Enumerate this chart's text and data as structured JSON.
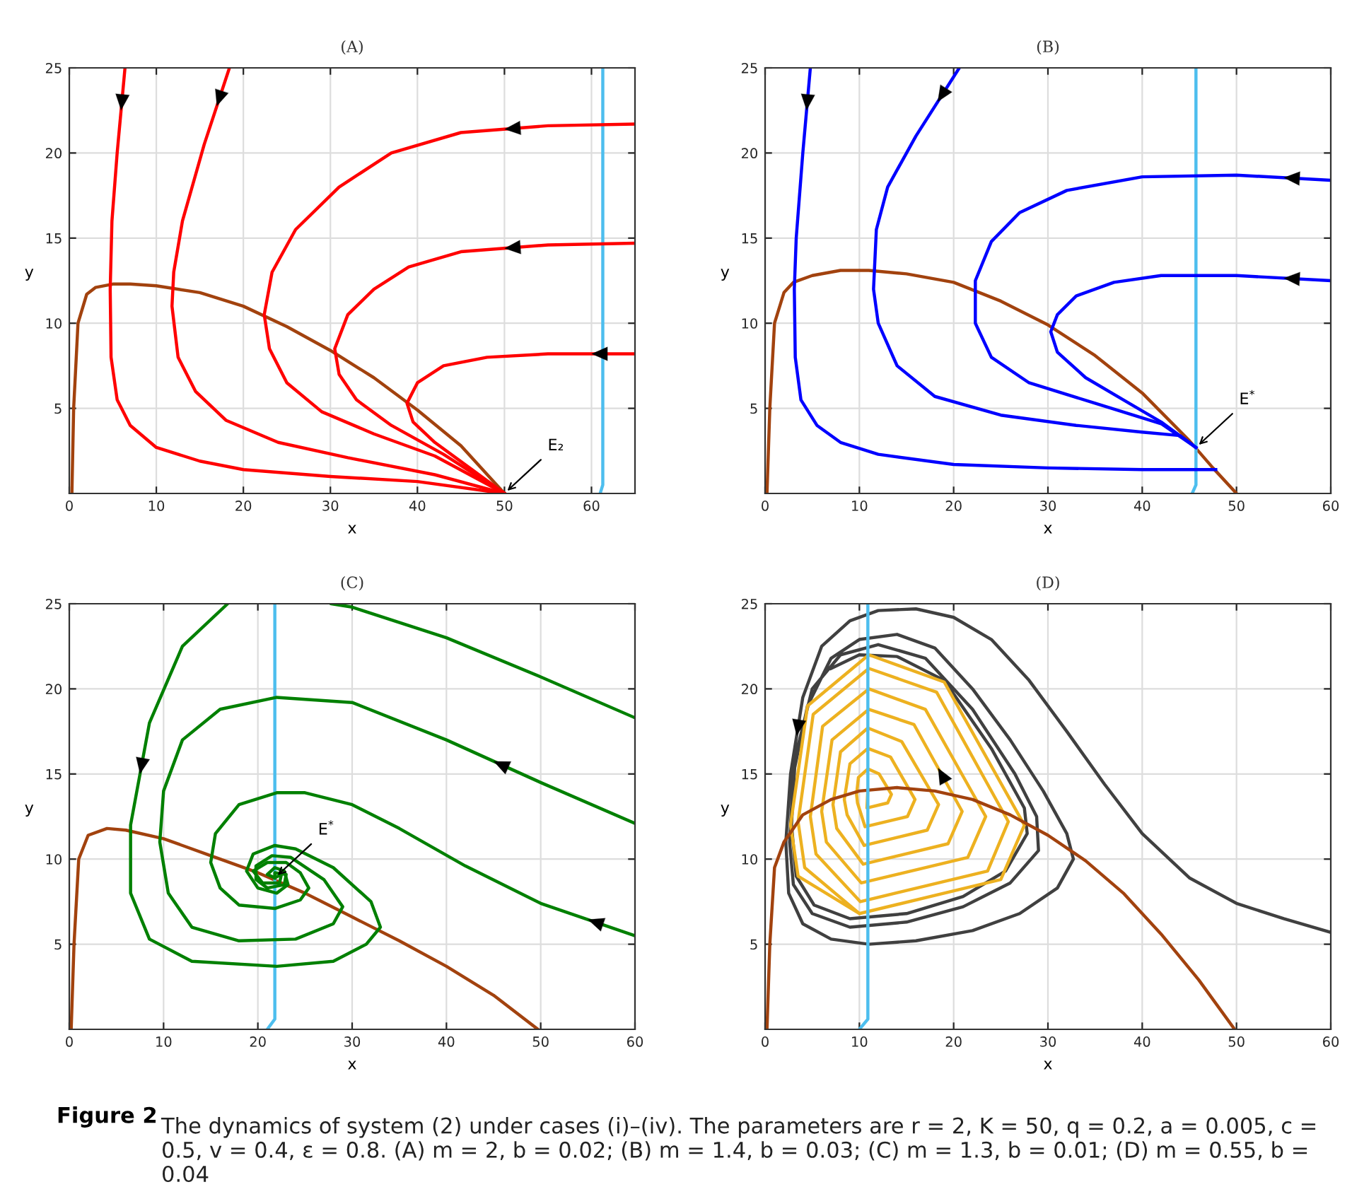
{
  "chart_data": [
    {
      "type": "line",
      "title": "(A)",
      "xlabel": "x",
      "ylabel": "y",
      "xlim": [
        0,
        65
      ],
      "ylim": [
        0,
        25
      ],
      "xticks": [
        0,
        10,
        20,
        30,
        40,
        50,
        60
      ],
      "yticks": [
        5,
        10,
        15,
        20,
        25
      ],
      "grid": true,
      "annotations": [
        {
          "text": "E₂",
          "x": 50,
          "y": 0
        }
      ],
      "series": [
        {
          "color": "#a2420e",
          "x": [
            0.3,
            0.5,
            1,
            2,
            3,
            5,
            7,
            10,
            15,
            20,
            25,
            30,
            35,
            40,
            45,
            50
          ],
          "values": [
            0,
            5,
            10,
            11.7,
            12.1,
            12.3,
            12.3,
            12.2,
            11.8,
            11.0,
            9.8,
            8.4,
            6.8,
            4.9,
            2.8,
            0
          ]
        },
        {
          "color": "#4dbeee",
          "x": [
            61,
            61.3,
            61.3
          ],
          "values": [
            0,
            0.5,
            25
          ]
        },
        {
          "color": "#ff0000",
          "x": [
            6.4,
            5.5,
            4.9,
            4.7,
            4.8,
            5.5,
            7,
            10,
            15,
            20,
            30,
            40,
            50
          ],
          "values": [
            25,
            20,
            16,
            12,
            8,
            5.5,
            4,
            2.7,
            1.9,
            1.4,
            1.0,
            0.7,
            0
          ]
        },
        {
          "color": "#ff0000",
          "x": [
            18.4,
            15.5,
            13,
            12,
            11.8,
            12.5,
            14.5,
            18,
            24,
            32,
            42,
            50
          ],
          "values": [
            25,
            20.5,
            16,
            13,
            11,
            8,
            6,
            4.3,
            3.0,
            2.1,
            1.1,
            0
          ]
        },
        {
          "color": "#ff0000",
          "x": [
            65,
            55,
            45,
            37,
            31,
            26,
            23.3,
            22.4,
            23,
            25,
            29,
            35,
            42,
            50
          ],
          "values": [
            21.7,
            21.6,
            21.2,
            20,
            18,
            15.5,
            13,
            10.5,
            8.5,
            6.5,
            4.8,
            3.5,
            2.2,
            0
          ]
        },
        {
          "color": "#ff0000",
          "x": [
            65,
            55,
            45,
            39,
            35,
            32,
            30.5,
            31,
            33,
            37,
            43,
            50
          ],
          "values": [
            14.7,
            14.6,
            14.2,
            13.3,
            12,
            10.5,
            8.5,
            7,
            5.5,
            4,
            2.3,
            0
          ]
        },
        {
          "color": "#ff0000",
          "x": [
            65,
            55,
            48,
            43,
            40,
            38.8,
            39.5,
            42,
            46,
            50
          ],
          "values": [
            8.2,
            8.2,
            8.0,
            7.5,
            6.5,
            5.3,
            4.2,
            3,
            1.5,
            0
          ]
        }
      ]
    },
    {
      "type": "line",
      "title": "(B)",
      "xlabel": "x",
      "ylabel": "y",
      "xlim": [
        0,
        60
      ],
      "ylim": [
        0,
        25
      ],
      "xticks": [
        0,
        10,
        20,
        30,
        40,
        50,
        60
      ],
      "yticks": [
        5,
        10,
        15,
        20,
        25
      ],
      "grid": true,
      "annotations": [
        {
          "text": "E$^{*}$",
          "x": 45.7,
          "y": 2.7
        }
      ],
      "series": [
        {
          "color": "#a2420e",
          "x": [
            0.2,
            0.5,
            1,
            2,
            3,
            5,
            8,
            11,
            15,
            20,
            25,
            30,
            35,
            40,
            45,
            47.5,
            50
          ],
          "values": [
            0,
            5,
            10,
            11.8,
            12.4,
            12.8,
            13.1,
            13.1,
            12.9,
            12.4,
            11.3,
            9.9,
            8.1,
            5.9,
            3.1,
            1.5,
            0
          ]
        },
        {
          "color": "#4dbeee",
          "x": [
            45.3,
            45.7,
            45.7
          ],
          "values": [
            0,
            0.5,
            25
          ]
        },
        {
          "color": "#0000ff",
          "x": [
            4.8,
            4,
            3.3,
            3.1,
            3.2,
            3.8,
            5.5,
            8,
            12,
            20,
            30,
            40,
            47.8
          ],
          "values": [
            25,
            20,
            15,
            12,
            8,
            5.5,
            4,
            3,
            2.3,
            1.7,
            1.5,
            1.4,
            1.4
          ]
        },
        {
          "color": "#0000ff",
          "x": [
            20.6,
            16,
            13,
            11.8,
            11.5,
            12,
            14,
            18,
            25,
            33,
            40,
            44,
            45.7
          ],
          "values": [
            25,
            21,
            18,
            15.5,
            12,
            10,
            7.5,
            5.7,
            4.6,
            4,
            3.6,
            3.4,
            2.7
          ]
        },
        {
          "color": "#0000ff",
          "x": [
            60,
            50,
            40,
            32,
            27,
            24,
            22.3,
            22.3,
            24,
            28,
            35,
            42,
            45.7
          ],
          "values": [
            18.4,
            18.7,
            18.6,
            17.8,
            16.5,
            14.8,
            12.5,
            10,
            8,
            6.5,
            5.3,
            4.1,
            2.7
          ]
        },
        {
          "color": "#0000ff",
          "x": [
            60,
            50,
            42,
            37,
            33,
            31,
            30.3,
            31,
            34,
            38,
            42,
            45.7
          ],
          "values": [
            12.5,
            12.8,
            12.8,
            12.4,
            11.6,
            10.5,
            9.5,
            8.3,
            6.8,
            5.5,
            4.2,
            2.7
          ]
        }
      ]
    },
    {
      "type": "line",
      "title": "(C)",
      "xlabel": "x",
      "ylabel": "y",
      "xlim": [
        0,
        60
      ],
      "ylim": [
        0,
        25
      ],
      "xticks": [
        0,
        10,
        20,
        30,
        40,
        50,
        60
      ],
      "yticks": [
        5,
        10,
        15,
        20,
        25
      ],
      "grid": true,
      "annotations": [
        {
          "text": "E$^{*}$",
          "x": 21.8,
          "y": 8.9
        }
      ],
      "series": [
        {
          "color": "#a2420e",
          "x": [
            0.2,
            0.5,
            1,
            2,
            4,
            6,
            10,
            15,
            20,
            25,
            30,
            35,
            40,
            45,
            49.7
          ],
          "values": [
            0,
            5,
            10,
            11.4,
            11.8,
            11.7,
            11.2,
            10.2,
            9.2,
            8.0,
            6.6,
            5.2,
            3.7,
            2.0,
            0
          ]
        },
        {
          "color": "#4dbeee",
          "x": [
            21,
            21.8,
            21.8
          ],
          "values": [
            0,
            0.6,
            25
          ]
        },
        {
          "color": "#008000",
          "x": [
            60,
            50,
            40,
            30,
            27.8,
            22,
            16.8,
            12,
            8.5,
            6.5,
            6.5,
            8.5,
            13,
            22,
            28,
            31.5,
            33,
            32,
            28,
            24,
            21.8,
            19.5,
            18.8,
            20,
            22,
            23.2,
            22.8,
            21.8,
            21,
            21.8
          ],
          "values": [
            18.3,
            20.7,
            23,
            24.8,
            25,
            null,
            25,
            22.5,
            18,
            12,
            8,
            5.3,
            4,
            3.7,
            4,
            5,
            6,
            7.5,
            9.5,
            10.6,
            10.8,
            10.3,
            9.3,
            8.3,
            8.0,
            8.5,
            9.3,
            9.5,
            9.1,
            8.9
          ]
        },
        {
          "color": "#008000",
          "x": [
            60,
            50,
            40,
            30,
            22,
            16,
            12,
            10,
            9.6,
            10.5,
            13,
            18,
            24,
            28,
            29,
            27,
            23.5,
            21.5,
            19.8,
            19.8,
            21,
            22.8,
            23,
            21.8,
            21.8
          ],
          "values": [
            12.1,
            14.5,
            17,
            19.2,
            19.5,
            18.8,
            17,
            14,
            11,
            8,
            6,
            5.2,
            5.3,
            6.2,
            7.2,
            8.8,
            10.1,
            10.2,
            9.6,
            8.8,
            8.3,
            8.5,
            9.1,
            9.2,
            8.9
          ]
        },
        {
          "color": "#008000",
          "x": [
            60,
            50,
            42,
            35,
            30,
            25,
            22,
            18,
            15.5,
            15,
            16,
            18,
            21.8,
            24.5,
            25.4,
            24.5,
            23,
            21,
            19.5,
            20.5,
            22.3,
            22.5,
            21.8
          ],
          "values": [
            5.5,
            7.4,
            9.6,
            11.8,
            13.2,
            13.9,
            13.9,
            13.2,
            11.5,
            9.8,
            8.3,
            7.3,
            7.1,
            7.6,
            8.3,
            9.2,
            9.8,
            9.8,
            9.3,
            8.6,
            8.6,
            9.1,
            8.9
          ]
        }
      ]
    },
    {
      "type": "line",
      "title": "(D)",
      "xlabel": "x",
      "ylabel": "y",
      "xlim": [
        0,
        60
      ],
      "ylim": [
        0,
        25
      ],
      "xticks": [
        0,
        10,
        20,
        30,
        40,
        50,
        60
      ],
      "yticks": [
        5,
        10,
        15,
        20,
        25
      ],
      "grid": true,
      "annotations": [
        "Figure 2",
        "The dynamics of system (2) under cases (i)–(iv). The parameters are r = 2, K = 50, q = 0.2, a = 0.005, c = 0.5, v = 0.4, ε = 0.8. (A) m = 2, b = 0.02; (B) m = 1.4, b = 0.03; (C) m = 1.3, b = 0.01; (D) m = 0.55, b = 0.04"
      ],
      "series": [
        {
          "color": "#404040",
          "x": [
            60,
            55,
            50,
            45,
            40,
            36,
            32,
            28,
            24,
            20,
            16,
            12,
            9,
            6,
            4,
            2.7,
            2.2,
            2.5,
            4,
            7,
            11,
            16,
            22,
            27,
            31,
            32.7,
            32,
            29.5,
            26,
            22,
            18,
            14,
            10,
            7,
            4.5,
            3,
            2.6,
            3,
            5,
            9,
            15,
            21,
            26,
            29,
            28.8,
            26.5,
            22,
            17,
            12,
            8,
            5,
            3.2,
            2.8,
            3.3,
            5.2,
            9,
            15,
            21,
            25.5,
            27.8,
            27.5,
            24,
            19,
            14,
            10,
            7
          ],
          "values": [
            5.7,
            6.5,
            7.4,
            8.9,
            11.5,
            14.4,
            17.5,
            20.5,
            22.9,
            24.2,
            24.7,
            24.6,
            24,
            22.5,
            19.5,
            15,
            11,
            8,
            6.2,
            5.3,
            5.0,
            5.2,
            5.8,
            6.8,
            8.3,
            10,
            11.5,
            14,
            17,
            20,
            22.4,
            23.2,
            22.9,
            21.8,
            19,
            15,
            11,
            8.5,
            6.8,
            6,
            6.3,
            7.2,
            8.6,
            10.5,
            12.5,
            15,
            18.8,
            21.8,
            22.6,
            22,
            20,
            16,
            12,
            9,
            7.3,
            6.5,
            6.8,
            7.8,
            9.3,
            11.5,
            13,
            16.5,
            20.5,
            21.9,
            22,
            21.2
          ]
        },
        {
          "color": "#edb120",
          "x": [
            10.9,
            10.8,
            13.0,
            13.4,
            12.1,
            10.9,
            9.9,
            9.7,
            9.8,
            10.6,
            15.1,
            15.9,
            13.3,
            10.9,
            9.0,
            8.4,
            8.7,
            10.5,
            17.2,
            18.4,
            14.5,
            10.9,
            8.0,
            7.2,
            7.6,
            10.4,
            19.4,
            20.9,
            15.8,
            11.0,
            7.1,
            6.0,
            6.5,
            10.2,
            21.5,
            23.4,
            17.0,
            11.0,
            6.1,
            4.8,
            5.4,
            10.1,
            23.6,
            25.8,
            18.2,
            11.0,
            5.1,
            3.5,
            4.2,
            10,
            25,
            27.5,
            19,
            11,
            4.5,
            2.7,
            3.5,
            10
          ],
          "values": [
            14.1,
            13.0,
            13.3,
            13.8,
            15.0,
            15.3,
            14.8,
            13.8,
            13.3,
            11.9,
            12.5,
            13.5,
            16.0,
            16.5,
            15.6,
            13.5,
            12.6,
            10.8,
            11.7,
            13.2,
            16.9,
            17.7,
            16.3,
            13.2,
            11.8,
            9.7,
            10.9,
            12.8,
            17.9,
            18.8,
            17.0,
            12.8,
            11.0,
            8.6,
            10.1,
            12.5,
            18.8,
            20.0,
            17.8,
            12.5,
            10.3,
            7.5,
            9.3,
            12.2,
            19.8,
            21.2,
            18.5,
            12.2,
            9.5,
            6.8,
            8.8,
            12,
            20.4,
            22,
            19,
            12,
            9,
            6.8
          ]
        },
        {
          "color": "#a2420e",
          "x": [
            0.2,
            0.5,
            1,
            2,
            4,
            7,
            10,
            14,
            18,
            22,
            26,
            30,
            34,
            38,
            42,
            46,
            49.8
          ],
          "values": [
            0,
            5,
            9.5,
            11,
            12.6,
            13.5,
            14.0,
            14.2,
            14.0,
            13.5,
            12.6,
            11.4,
            9.9,
            8.0,
            5.6,
            2.9,
            0
          ]
        },
        {
          "color": "#4dbeee",
          "x": [
            10,
            10.9,
            10.9
          ],
          "values": [
            0,
            0.6,
            25
          ]
        }
      ]
    }
  ]
}
